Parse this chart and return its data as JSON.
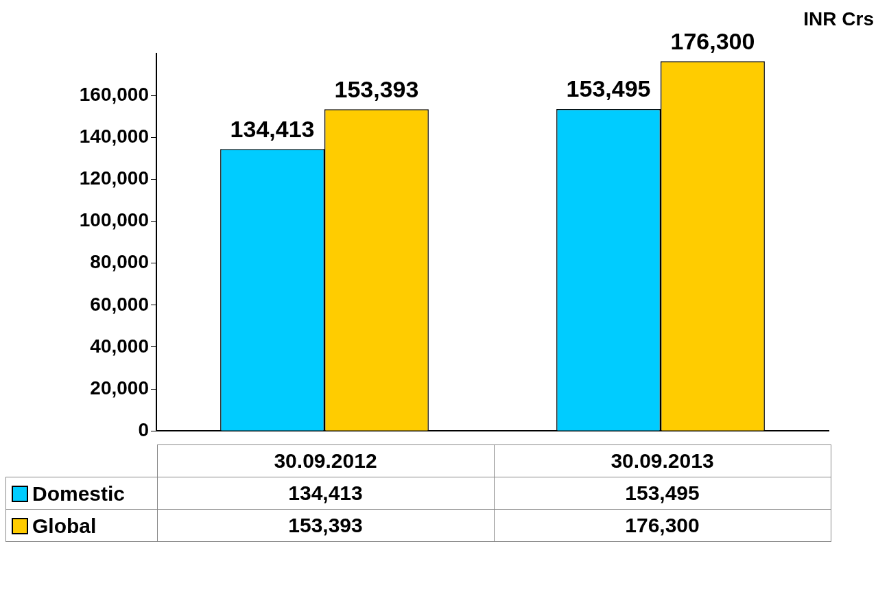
{
  "chart_data": {
    "type": "bar",
    "categories": [
      "30.09.2012",
      "30.09.2013"
    ],
    "series": [
      {
        "name": "Domestic",
        "color": "#00ccff",
        "values": [
          134413,
          153495
        ],
        "value_labels": [
          "134,413",
          "153,495"
        ]
      },
      {
        "name": "Global",
        "color": "#ffcc00",
        "values": [
          153393,
          176300
        ],
        "value_labels": [
          "153,393",
          "176,300"
        ]
      }
    ],
    "ylim": [
      0,
      180000
    ],
    "yticks": [
      {
        "value": 0,
        "label": "0"
      },
      {
        "value": 20000,
        "label": "20,000"
      },
      {
        "value": 40000,
        "label": "40,000"
      },
      {
        "value": 60000,
        "label": "60,000"
      },
      {
        "value": 80000,
        "label": "80,000"
      },
      {
        "value": 100000,
        "label": "100,000"
      },
      {
        "value": 120000,
        "label": "120,000"
      },
      {
        "value": 140000,
        "label": "140,000"
      },
      {
        "value": 160000,
        "label": "160,000"
      }
    ],
    "legend": "bottom",
    "annotations": [
      "INR Crs"
    ]
  }
}
